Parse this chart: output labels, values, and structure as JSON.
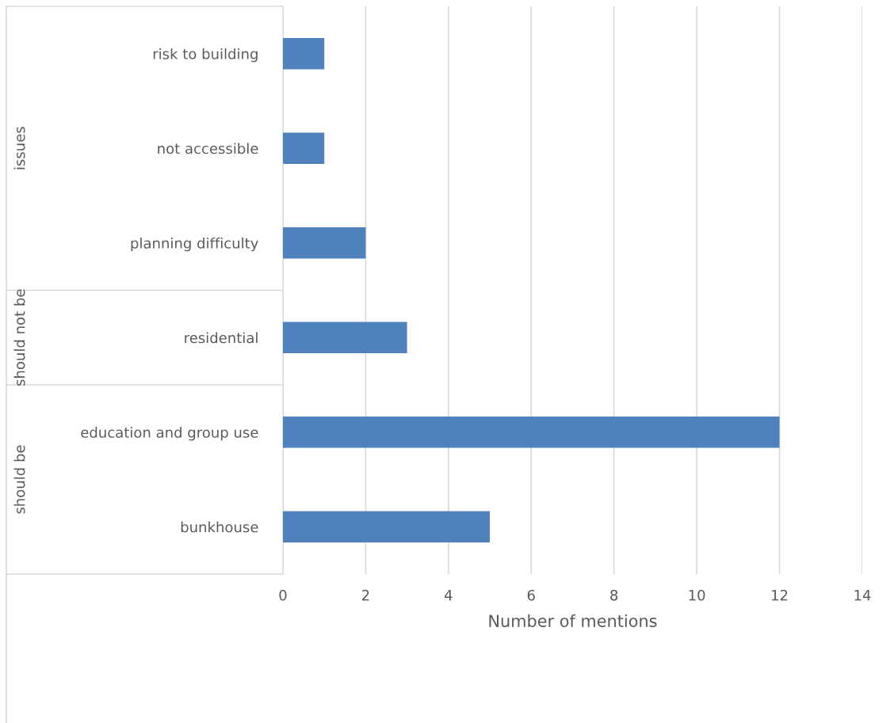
{
  "chart_data": {
    "type": "bar",
    "orientation": "horizontal",
    "categories": [
      "risk to building",
      "not accessible",
      "planning difficulty",
      "residential",
      "education and group use",
      "bunkhouse"
    ],
    "values": [
      1,
      1,
      2,
      3,
      12,
      5
    ],
    "color": "#4f81bd",
    "xlabel": "Number of mentions",
    "xlim": [
      0,
      14
    ],
    "xticks": [
      0,
      2,
      4,
      6,
      8,
      10,
      12,
      14
    ],
    "grid": "x",
    "annotations": [
      "issues",
      "should not be",
      "should be"
    ]
  }
}
